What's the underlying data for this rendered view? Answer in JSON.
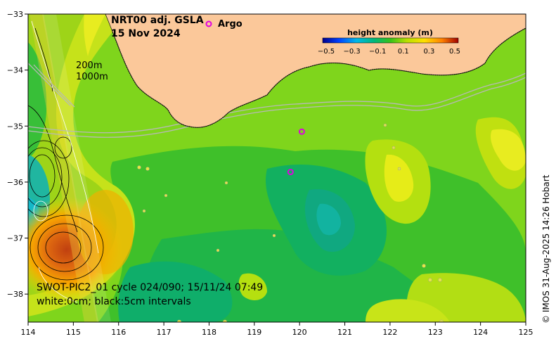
{
  "title": {
    "line1": "NRT00 adj. GSLA",
    "line2": "15 Nov 2024"
  },
  "legend": {
    "argo_label": "Argo",
    "argo_symbol": "o",
    "argo_color": "#e000e0"
  },
  "contour_labels": {
    "shallow": "200m",
    "deep": "1000m"
  },
  "colorbar": {
    "title": "height anomaly (m)",
    "ticks": [
      "−0.5",
      "−0.3",
      "−0.1",
      "0.1",
      "0.3",
      "0.5"
    ]
  },
  "swot": {
    "line1": "SWOT-PIC2_01 cycle 024/090; 15/11/24 07:49",
    "line2": "white:0cm; black:5cm intervals"
  },
  "copyright": "© IMOS 31-Aug-2025 14:26 Hobart",
  "axes": {
    "x_ticks": [
      "114",
      "115",
      "116",
      "117",
      "118",
      "119",
      "120",
      "121",
      "122",
      "123",
      "124",
      "125"
    ],
    "y_ticks": [
      "−33",
      "−34",
      "−35",
      "−36",
      "−37",
      "−38"
    ]
  },
  "argo_floats": [
    {
      "lon": 120.05,
      "lat": -35.1
    },
    {
      "lon": 119.8,
      "lat": -35.82
    }
  ],
  "colors": {
    "land": "#fbc89a",
    "background": "#7fd51c",
    "argo": "#e000e0"
  }
}
